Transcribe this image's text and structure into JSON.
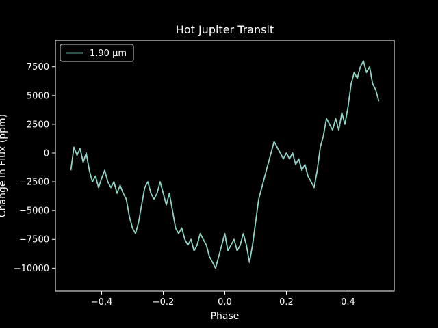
{
  "chart_data": {
    "type": "line",
    "title": "Hot Jupiter Transit",
    "xlabel": "Phase",
    "ylabel": "Change in Flux (ppm)",
    "xlim": [
      -0.55,
      0.55
    ],
    "ylim": [
      -12000,
      9800
    ],
    "xticks": [
      -0.4,
      -0.2,
      0.0,
      0.2,
      0.4
    ],
    "xtick_labels": [
      "−0.4",
      "−0.2",
      "0.0",
      "0.2",
      "0.4"
    ],
    "yticks": [
      -10000,
      -7500,
      -5000,
      -2500,
      0,
      2500,
      5000,
      7500
    ],
    "ytick_labels": [
      "−10000",
      "−7500",
      "−5000",
      "−2500",
      "0",
      "2500",
      "5000",
      "7500"
    ],
    "grid": false,
    "legend_position": "upper-left",
    "colors": {
      "background": "#000000",
      "axes": "#ffffff",
      "line": "#8dd3c7"
    },
    "series": [
      {
        "name": "1.90 µm",
        "x": [
          -0.5,
          -0.49,
          -0.48,
          -0.47,
          -0.46,
          -0.45,
          -0.44,
          -0.43,
          -0.42,
          -0.41,
          -0.4,
          -0.39,
          -0.38,
          -0.37,
          -0.36,
          -0.35,
          -0.34,
          -0.33,
          -0.32,
          -0.31,
          -0.3,
          -0.29,
          -0.28,
          -0.27,
          -0.26,
          -0.25,
          -0.24,
          -0.23,
          -0.22,
          -0.21,
          -0.2,
          -0.19,
          -0.18,
          -0.17,
          -0.16,
          -0.15,
          -0.14,
          -0.13,
          -0.12,
          -0.11,
          -0.1,
          -0.09,
          -0.08,
          -0.07,
          -0.06,
          -0.05,
          -0.04,
          -0.03,
          -0.02,
          -0.01,
          0.0,
          0.01,
          0.02,
          0.03,
          0.04,
          0.05,
          0.06,
          0.07,
          0.08,
          0.09,
          0.1,
          0.11,
          0.12,
          0.13,
          0.14,
          0.15,
          0.16,
          0.17,
          0.18,
          0.19,
          0.2,
          0.21,
          0.22,
          0.23,
          0.24,
          0.25,
          0.26,
          0.27,
          0.28,
          0.29,
          0.3,
          0.31,
          0.32,
          0.33,
          0.34,
          0.35,
          0.36,
          0.37,
          0.38,
          0.39,
          0.4,
          0.41,
          0.42,
          0.43,
          0.44,
          0.45,
          0.46,
          0.47,
          0.48,
          0.49,
          0.5
        ],
        "y": [
          -1500,
          500,
          -200,
          400,
          -800,
          0,
          -1500,
          -2500,
          -2000,
          -3000,
          -2200,
          -1500,
          -2500,
          -3000,
          -2500,
          -3500,
          -2800,
          -3500,
          -4000,
          -5500,
          -6500,
          -7000,
          -6000,
          -4500,
          -3000,
          -2500,
          -3500,
          -4000,
          -3500,
          -2500,
          -3500,
          -4500,
          -3500,
          -5000,
          -6500,
          -7000,
          -6500,
          -7500,
          -8000,
          -7500,
          -8500,
          -8000,
          -7000,
          -7500,
          -8000,
          -9000,
          -9500,
          -10000,
          -9000,
          -8000,
          -7000,
          -8500,
          -8000,
          -7500,
          -8500,
          -8000,
          -7000,
          -8000,
          -9500,
          -8000,
          -6000,
          -4000,
          -3000,
          -2000,
          -1000,
          0,
          1000,
          500,
          0,
          -500,
          0,
          -500,
          0,
          -1000,
          -500,
          -1500,
          -1000,
          -2000,
          -2500,
          -3000,
          -1500,
          500,
          1500,
          3000,
          2500,
          2000,
          3000,
          2000,
          3500,
          2500,
          4000,
          6000,
          7000,
          6500,
          7500,
          8000,
          7000,
          7500,
          6000,
          5500,
          4500
        ]
      }
    ]
  }
}
